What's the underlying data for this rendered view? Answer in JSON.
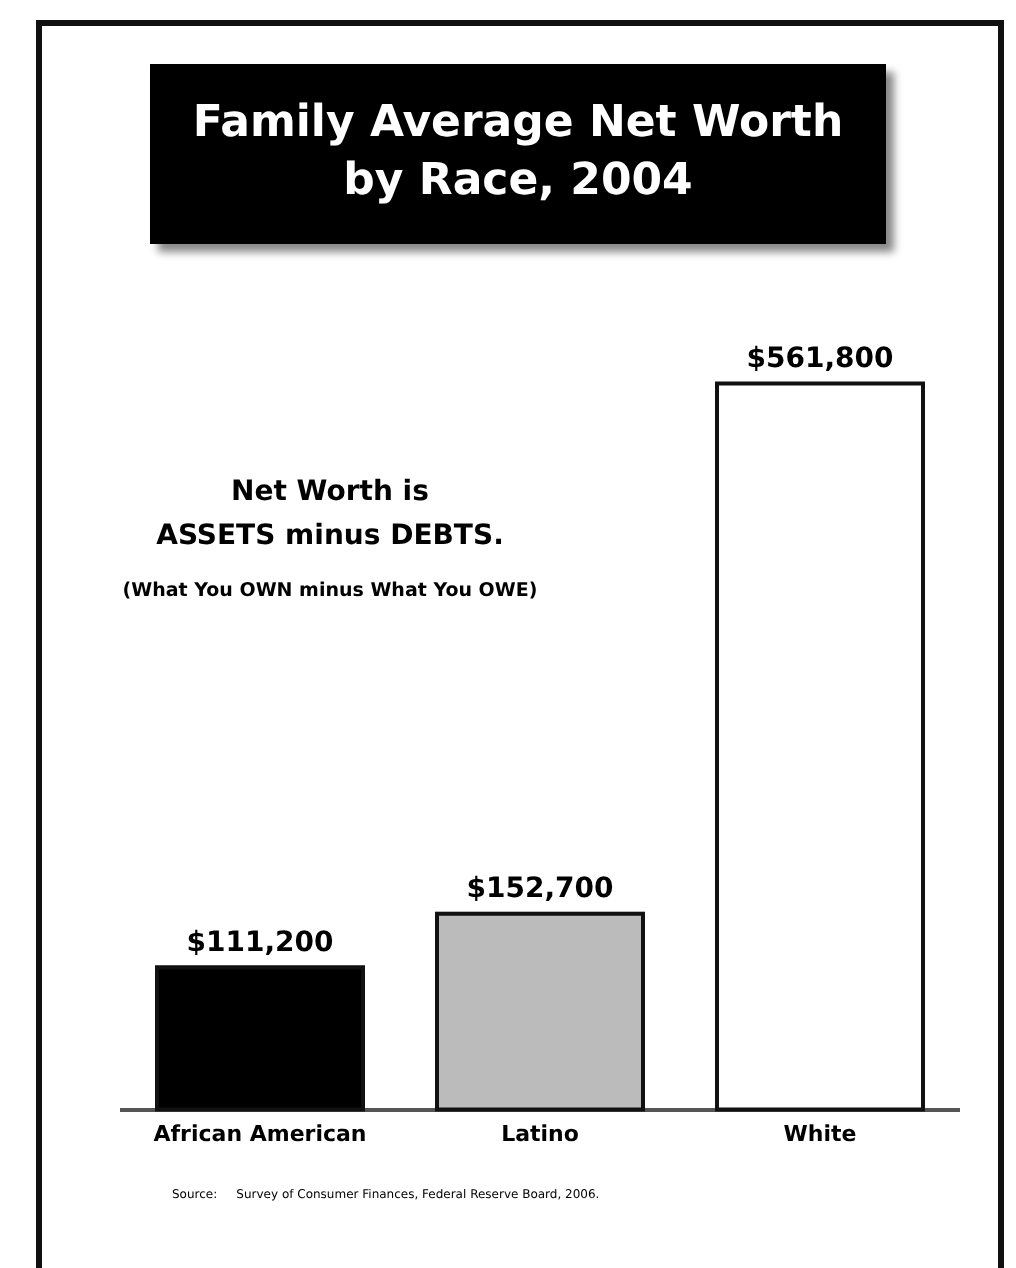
{
  "chart_data": {
    "type": "bar",
    "title": "Family Average Net Worth by Race, 2004",
    "categories": [
      "African American",
      "Latino",
      "White"
    ],
    "values": [
      111200,
      152700,
      561800
    ],
    "colors": [
      "#000000",
      "#bbbbbc",
      "#ffffff"
    ],
    "value_labels": [
      "$111,200",
      "$152,700",
      "$561,800"
    ],
    "annotations": [
      "Net Worth is\nASSETS minus DEBTS.",
      "(What You OWN minus What You OWE)",
      "Source:     Survey of Consumer Finances, Federal Reserve Board, 2006."
    ],
    "grid": false,
    "legend": false
  }
}
